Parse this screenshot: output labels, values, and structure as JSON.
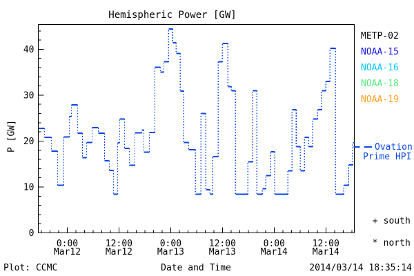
{
  "chart_data": {
    "type": "line",
    "subtype": "step",
    "title": "Hemispheric Power [GW]",
    "ylabel": "P [GW]",
    "xlabel": "Date and Time",
    "ylim": [
      0,
      45.4
    ],
    "yticks": [
      0,
      10,
      20,
      30,
      40
    ],
    "y_minor_step": 2,
    "xlim_hours": [
      -6.72,
      66.6
    ],
    "x_minor_step_hours": 2,
    "xticks": [
      {
        "hours": 0,
        "time": "0:00",
        "date": "Mar12"
      },
      {
        "hours": 12,
        "time": "12:00",
        "date": "Mar12"
      },
      {
        "hours": 24,
        "time": "0:00",
        "date": "Mar13"
      },
      {
        "hours": 36,
        "time": "12:00",
        "date": "Mar13"
      },
      {
        "hours": 48,
        "time": "0:00",
        "date": "Mar14"
      },
      {
        "hours": 60,
        "time": "12:00",
        "date": "Mar14"
      }
    ],
    "grid": false,
    "series": [
      {
        "name": "Ovation Prime HPI",
        "color": "#0A46E0",
        "style": "solid-steps-dotted-risers",
        "points_hours_gw": [
          [
            -6.72,
            22.8
          ],
          [
            -5.28,
            20.8
          ],
          [
            -3.68,
            17.8
          ],
          [
            -2.24,
            10.4
          ],
          [
            -0.8,
            20.9
          ],
          [
            0.48,
            25.3
          ],
          [
            0.96,
            27.9
          ],
          [
            2.4,
            21.7
          ],
          [
            3.52,
            16.4
          ],
          [
            4.48,
            19.7
          ],
          [
            5.76,
            22.9
          ],
          [
            7.2,
            21.7
          ],
          [
            8.64,
            15.7
          ],
          [
            9.76,
            13.6
          ],
          [
            10.72,
            8.4
          ],
          [
            11.68,
            19.6
          ],
          [
            12.16,
            24.8
          ],
          [
            13.28,
            18.4
          ],
          [
            14.4,
            14.7
          ],
          [
            15.68,
            21.8
          ],
          [
            17.28,
            22.4
          ],
          [
            17.76,
            17.6
          ],
          [
            19.04,
            21.9
          ],
          [
            20.32,
            36.1
          ],
          [
            21.6,
            35.0
          ],
          [
            22.4,
            37.3
          ],
          [
            23.52,
            44.4
          ],
          [
            24.48,
            41.4
          ],
          [
            25.28,
            39.1
          ],
          [
            26.24,
            30.9
          ],
          [
            27.04,
            19.7
          ],
          [
            28.16,
            18.1
          ],
          [
            29.76,
            8.4
          ],
          [
            31.04,
            26.0
          ],
          [
            32.16,
            9.4
          ],
          [
            33.12,
            8.4
          ],
          [
            33.76,
            16.6
          ],
          [
            35.04,
            37.3
          ],
          [
            36.0,
            41.3
          ],
          [
            37.28,
            31.9
          ],
          [
            38.08,
            31.0
          ],
          [
            39.04,
            8.4
          ],
          [
            41.92,
            15.5
          ],
          [
            43.04,
            31.0
          ],
          [
            44.0,
            8.4
          ],
          [
            45.28,
            9.6
          ],
          [
            46.08,
            12.5
          ],
          [
            47.2,
            17.7
          ],
          [
            48.16,
            8.4
          ],
          [
            51.2,
            13.5
          ],
          [
            52.16,
            26.8
          ],
          [
            53.12,
            18.8
          ],
          [
            54.08,
            13.5
          ],
          [
            55.04,
            20.8
          ],
          [
            56.0,
            18.8
          ],
          [
            56.96,
            24.8
          ],
          [
            58.08,
            26.8
          ],
          [
            59.04,
            31.0
          ],
          [
            60.0,
            33.0
          ],
          [
            60.96,
            40.2
          ],
          [
            62.24,
            8.4
          ],
          [
            64.16,
            10.4
          ],
          [
            65.28,
            14.8
          ],
          [
            66.24,
            19.6
          ]
        ]
      }
    ],
    "legend": {
      "satellites": [
        {
          "label": "METP-02",
          "color": "#000000"
        },
        {
          "label": "NOAA-15",
          "color": "#1414F0"
        },
        {
          "label": "NOAA-16",
          "color": "#00C8FF"
        },
        {
          "label": "NOAA-18",
          "color": "#55E87D"
        },
        {
          "label": "NOAA-19",
          "color": "#FFA01E"
        }
      ],
      "line_entry": {
        "label_line1": "Ovation",
        "label_line2": "Prime HPI",
        "color": "#0A46E0"
      },
      "markers": [
        {
          "symbol": "+",
          "label": "south"
        },
        {
          "symbol": "*",
          "label": "north"
        }
      ]
    },
    "footer": {
      "left": "Plot: CCMC",
      "right": "2014/03/14 18:35:14"
    }
  }
}
